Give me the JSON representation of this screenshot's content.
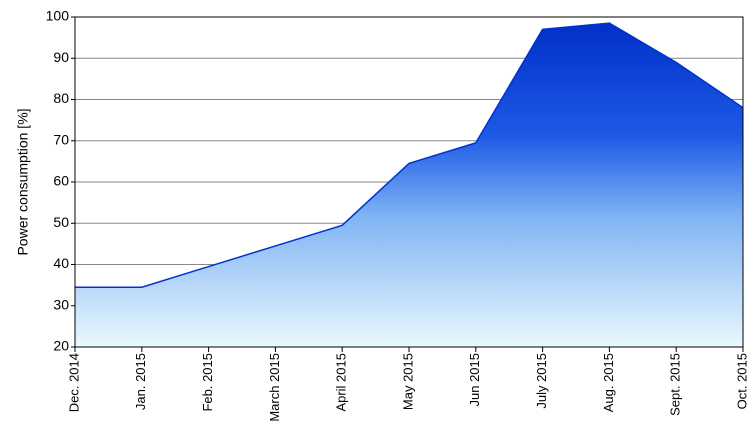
{
  "chart_data": {
    "type": "area",
    "y_label": "Power consumption [%]",
    "categories": [
      "Dec. 2014",
      "Jan. 2015",
      "Feb. 2015",
      "March 2015",
      "April 2015",
      "May 2015",
      "Jun 2015",
      "July 2015",
      "Aug. 2015",
      "Sept. 2015",
      "Oct. 2015"
    ],
    "values": [
      34.5,
      34.5,
      39.5,
      44.5,
      49.5,
      64.5,
      69.5,
      97,
      98.5,
      89,
      78
    ],
    "color": "#0033cc",
    "ylim": [
      20,
      100
    ],
    "yticks": [
      20,
      30,
      40,
      50,
      60,
      70,
      80,
      90,
      100
    ],
    "grid": true
  }
}
